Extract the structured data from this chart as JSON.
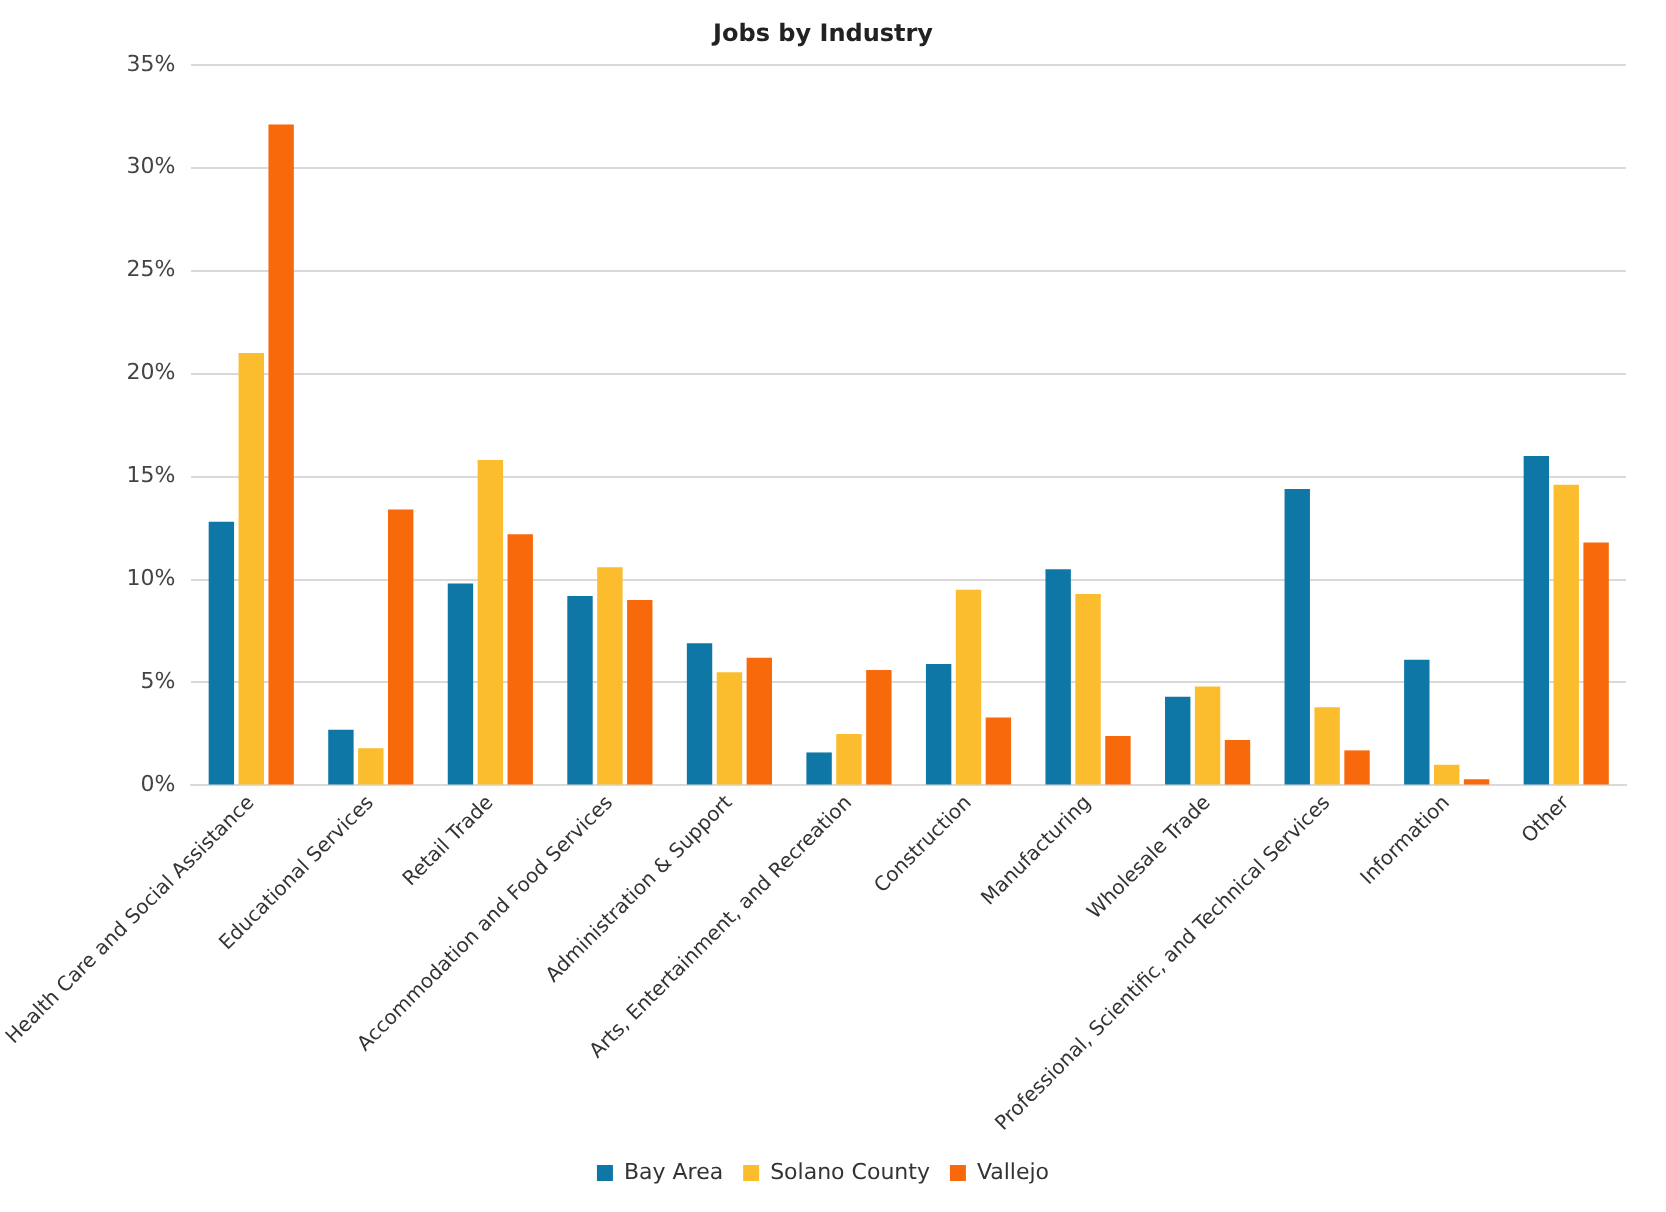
{
  "chart_data": {
    "type": "bar",
    "title": "Jobs by Industry",
    "categories": [
      "Health Care and Social Assistance",
      "Educational Services",
      "Retail Trade",
      "Accommodation and Food Services",
      "Administration & Support",
      "Arts, Entertainment, and Recreation",
      "Construction",
      "Manufacturing",
      "Wholesale Trade",
      "Professional, Scientific, and Technical Services",
      "Information",
      "Other"
    ],
    "series": [
      {
        "name": "Bay Area",
        "color": "#0f77a6",
        "values": [
          12.8,
          2.7,
          9.8,
          9.2,
          6.9,
          1.6,
          5.9,
          10.5,
          4.3,
          14.4,
          6.1,
          16.0
        ]
      },
      {
        "name": "Solano County",
        "color": "#fbbd2e",
        "values": [
          21.0,
          1.8,
          15.8,
          10.6,
          5.5,
          2.5,
          9.5,
          9.3,
          4.8,
          3.8,
          1.0,
          14.6
        ]
      },
      {
        "name": "Vallejo",
        "color": "#f8690c",
        "values": [
          32.1,
          13.4,
          12.2,
          9.0,
          6.2,
          5.6,
          3.3,
          2.4,
          2.2,
          1.7,
          0.3,
          11.8
        ]
      }
    ],
    "ylim": [
      0,
      35
    ],
    "yticks": [
      {
        "value": 0,
        "label": "0%"
      },
      {
        "value": 5,
        "label": "5%"
      },
      {
        "value": 10,
        "label": "10%"
      },
      {
        "value": 15,
        "label": "15%"
      },
      {
        "value": 20,
        "label": "20%"
      },
      {
        "value": 25,
        "label": "25%"
      },
      {
        "value": 30,
        "label": "30%"
      },
      {
        "value": 35,
        "label": "35%"
      }
    ],
    "grid": "y",
    "legend": "bottom"
  }
}
